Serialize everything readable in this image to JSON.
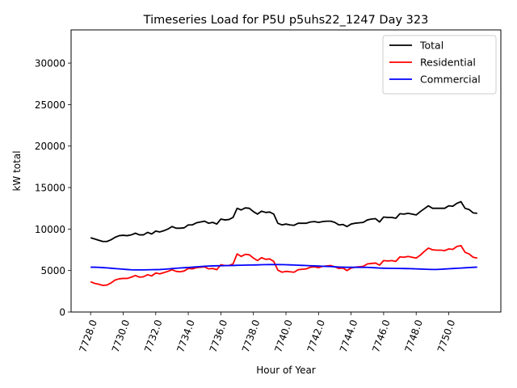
{
  "chart_data": {
    "type": "line",
    "title": "Timeseries Load for P5U p5uhs22_1247  Day 323",
    "xlabel": "Hour of Year",
    "ylabel": "kW total",
    "xlim": [
      7726.8,
      7753.2
    ],
    "ylim": [
      0,
      34000
    ],
    "xticks": [
      7728,
      7730,
      7732,
      7734,
      7736,
      7738,
      7740,
      7742,
      7744,
      7746,
      7748,
      7750
    ],
    "xtick_labels": [
      "7728.0",
      "7730.0",
      "7732.0",
      "7734.0",
      "7736.0",
      "7738.0",
      "7740.0",
      "7742.0",
      "7744.0",
      "7746.0",
      "7748.0",
      "7750.0"
    ],
    "yticks": [
      0,
      5000,
      10000,
      15000,
      20000,
      25000,
      30000
    ],
    "ytick_labels": [
      "0",
      "5000",
      "10000",
      "15000",
      "20000",
      "25000",
      "30000"
    ],
    "legend_position": "upper right",
    "grid": false,
    "x": [
      7728.0,
      7728.25,
      7728.5,
      7728.75,
      7729.0,
      7729.25,
      7729.5,
      7729.75,
      7730.0,
      7730.25,
      7730.5,
      7730.75,
      7731.0,
      7731.25,
      7731.5,
      7731.75,
      7732.0,
      7732.25,
      7732.5,
      7732.75,
      7733.0,
      7733.25,
      7733.5,
      7733.75,
      7734.0,
      7734.25,
      7734.5,
      7734.75,
      7735.0,
      7735.25,
      7735.5,
      7735.75,
      7736.0,
      7736.25,
      7736.5,
      7736.75,
      7737.0,
      7737.25,
      7737.5,
      7737.75,
      7738.0,
      7738.25,
      7738.5,
      7738.75,
      7739.0,
      7739.25,
      7739.5,
      7739.75,
      7740.0,
      7740.25,
      7740.5,
      7740.75,
      7741.0,
      7741.25,
      7741.5,
      7741.75,
      7742.0,
      7742.25,
      7742.5,
      7742.75,
      7743.0,
      7743.25,
      7743.5,
      7743.75,
      7744.0,
      7744.25,
      7744.5,
      7744.75,
      7745.0,
      7745.25,
      7745.5,
      7745.75,
      7746.0,
      7746.25,
      7746.5,
      7746.75,
      7747.0,
      7747.25,
      7747.5,
      7747.75,
      7748.0,
      7748.25,
      7748.5,
      7748.75,
      7749.0,
      7749.25,
      7749.5,
      7749.75,
      7750.0,
      7750.25,
      7750.5,
      7750.75,
      7751.0,
      7751.25,
      7751.5,
      7751.75
    ],
    "series": [
      {
        "name": "Total",
        "color": "#000000",
        "values": [
          8950,
          8800,
          8650,
          8500,
          8500,
          8700,
          9000,
          9200,
          9250,
          9200,
          9300,
          9500,
          9300,
          9300,
          9600,
          9400,
          9750,
          9650,
          9800,
          10000,
          10300,
          10100,
          10100,
          10150,
          10500,
          10500,
          10750,
          10850,
          10950,
          10700,
          10800,
          10600,
          11200,
          11100,
          11150,
          11400,
          12500,
          12300,
          12550,
          12500,
          12100,
          11800,
          12150,
          12000,
          12050,
          11800,
          10700,
          10500,
          10600,
          10500,
          10450,
          10700,
          10700,
          10700,
          10850,
          10900,
          10800,
          10900,
          10950,
          10950,
          10800,
          10500,
          10550,
          10300,
          10600,
          10700,
          10750,
          10800,
          11100,
          11200,
          11250,
          10850,
          11450,
          11400,
          11400,
          11300,
          11850,
          11800,
          11900,
          11800,
          11700,
          12100,
          12450,
          12800,
          12500,
          12500,
          12500,
          12500,
          12800,
          12750,
          13100,
          13300,
          12500,
          12350,
          11950,
          11900
        ]
      },
      {
        "name": "Residential",
        "color": "#ff0000",
        "values": [
          3650,
          3450,
          3350,
          3200,
          3250,
          3500,
          3850,
          4000,
          4050,
          4050,
          4200,
          4400,
          4200,
          4250,
          4500,
          4350,
          4700,
          4600,
          4750,
          4900,
          5100,
          4900,
          4850,
          4950,
          5250,
          5200,
          5350,
          5400,
          5450,
          5200,
          5250,
          5100,
          5700,
          5600,
          5600,
          5800,
          7000,
          6700,
          6950,
          6900,
          6500,
          6200,
          6550,
          6350,
          6400,
          6100,
          5050,
          4800,
          4900,
          4850,
          4800,
          5100,
          5150,
          5200,
          5400,
          5450,
          5350,
          5500,
          5550,
          5600,
          5450,
          5250,
          5300,
          5000,
          5300,
          5400,
          5450,
          5500,
          5800,
          5850,
          5900,
          5650,
          6200,
          6150,
          6200,
          6100,
          6650,
          6600,
          6700,
          6600,
          6500,
          6850,
          7300,
          7700,
          7500,
          7450,
          7450,
          7400,
          7600,
          7550,
          7900,
          8000,
          7200,
          7000,
          6600,
          6500
        ]
      },
      {
        "name": "Commercial",
        "color": "#0000ff",
        "values": [
          5400,
          5400,
          5380,
          5350,
          5320,
          5280,
          5240,
          5200,
          5160,
          5120,
          5090,
          5080,
          5080,
          5080,
          5090,
          5100,
          5110,
          5120,
          5150,
          5190,
          5230,
          5270,
          5310,
          5340,
          5370,
          5400,
          5440,
          5480,
          5510,
          5540,
          5560,
          5570,
          5580,
          5590,
          5600,
          5610,
          5630,
          5640,
          5650,
          5660,
          5670,
          5680,
          5700,
          5710,
          5720,
          5720,
          5720,
          5710,
          5700,
          5680,
          5660,
          5640,
          5620,
          5600,
          5580,
          5560,
          5540,
          5520,
          5500,
          5480,
          5450,
          5420,
          5400,
          5390,
          5390,
          5390,
          5390,
          5390,
          5380,
          5360,
          5330,
          5300,
          5280,
          5270,
          5260,
          5260,
          5250,
          5240,
          5230,
          5220,
          5200,
          5180,
          5160,
          5140,
          5130,
          5130,
          5150,
          5180,
          5210,
          5240,
          5270,
          5300,
          5330,
          5360,
          5390,
          5410
        ]
      }
    ]
  }
}
